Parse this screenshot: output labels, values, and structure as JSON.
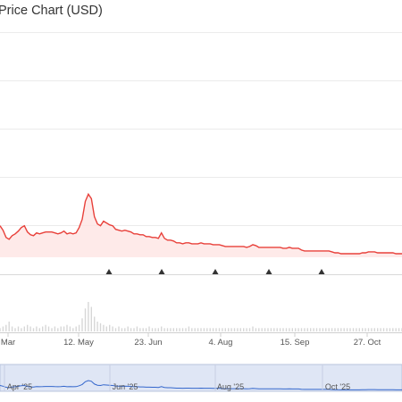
{
  "title": "Price Chart (USD)",
  "colors": {
    "price_line": "#e8403a",
    "price_fill": "#fde3e2",
    "volume": "#d7d7d7",
    "navigator_fill": "#dfe6f5",
    "navigator_line": "#3366cc",
    "grid": "#ebebeb",
    "marker": "#333333"
  },
  "chart_data": {
    "type": "line",
    "title": "Price Chart (USD)",
    "x_tick_labels": [
      "Mar",
      "12. May",
      "23. Jun",
      "4. Aug",
      "15. Sep",
      "27. Oct"
    ],
    "navigator_labels": [
      "Apr '25",
      "Jun '25",
      "Aug '25",
      "Oct '25"
    ],
    "y_axis": "unlabeled, relative scale 0-100",
    "ylim": [
      0,
      100
    ],
    "series": [
      {
        "values": [
          35,
          30,
          22,
          20,
          24,
          26,
          29,
          33,
          35,
          28,
          25,
          24,
          27,
          26,
          27,
          28,
          28,
          28,
          27,
          26,
          27,
          29,
          26,
          27,
          26,
          27,
          33,
          42,
          62,
          70,
          65,
          45,
          37,
          35,
          40,
          38,
          36,
          35,
          31,
          30,
          29,
          30,
          29,
          28,
          26,
          26,
          25,
          25,
          23,
          23,
          22,
          22,
          21,
          27,
          21,
          19,
          19,
          18,
          16,
          16,
          15,
          16,
          16,
          15,
          15,
          15,
          16,
          15,
          15,
          15,
          14,
          14,
          14,
          13,
          12,
          12,
          12,
          12,
          12,
          12,
          12,
          11,
          12,
          14,
          13,
          11,
          11,
          11,
          11,
          11,
          11,
          11,
          11,
          10,
          10,
          11,
          10,
          10,
          10,
          8,
          7,
          7,
          7,
          7,
          7,
          7,
          7,
          7,
          7,
          6,
          5,
          5,
          4,
          4,
          4,
          4,
          4,
          4,
          4,
          5,
          5,
          6,
          6,
          6,
          5,
          5,
          5,
          5,
          5,
          5,
          4,
          4,
          4
        ]
      }
    ],
    "volume": [
      2,
      3,
      4,
      6,
      3,
      2,
      3,
      2,
      3,
      4,
      3,
      2,
      3,
      2,
      3,
      4,
      3,
      2,
      3,
      2,
      3,
      3,
      4,
      3,
      2,
      3,
      4,
      8,
      14,
      18,
      15,
      9,
      6,
      5,
      4,
      3,
      4,
      3,
      2,
      3,
      2,
      2,
      3,
      2,
      2,
      3,
      2,
      2,
      2,
      3,
      2,
      2,
      2,
      3,
      2,
      2,
      2,
      2,
      2,
      2,
      2,
      2,
      3,
      2,
      2,
      2,
      2,
      2,
      2,
      2,
      2,
      2,
      2,
      2,
      2,
      2,
      2,
      2,
      2,
      2,
      2,
      2,
      2,
      3,
      2,
      2,
      2,
      2,
      2,
      2,
      2,
      2,
      2,
      2,
      2,
      2,
      2,
      2,
      2,
      2,
      2,
      2,
      2,
      2,
      2,
      2,
      2,
      2,
      2,
      2,
      2,
      2,
      2,
      2,
      2,
      2,
      2,
      2,
      2,
      2,
      2,
      2,
      2,
      2,
      2,
      2,
      2,
      2,
      2,
      2,
      2,
      2,
      2
    ],
    "event_markers": 5,
    "grid": true
  }
}
